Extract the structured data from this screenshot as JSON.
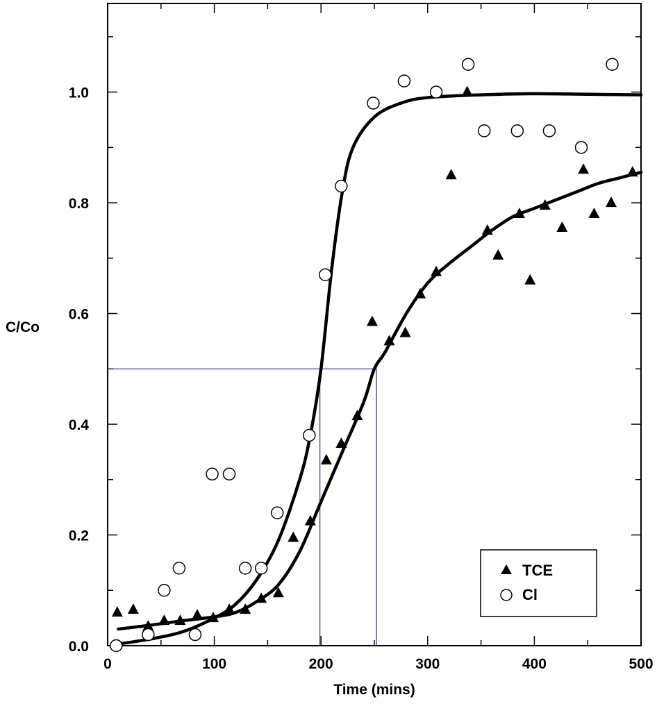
{
  "chart_data": {
    "type": "scatter",
    "xlabel": "Time (mins)",
    "ylabel": "C/Co",
    "xlim": [
      0,
      500
    ],
    "ylim": [
      0,
      1.16
    ],
    "x_ticks": [
      "0",
      "100",
      "200",
      "300",
      "400",
      "500"
    ],
    "y_ticks": [
      "0.0",
      "0.2",
      "0.4",
      "0.6",
      "0.8",
      "1.0"
    ],
    "grid": false,
    "legend_position": "bottom-right",
    "series": [
      {
        "name": "TCE",
        "marker": "filled-triangle",
        "points": [
          [
            9,
            0.06
          ],
          [
            24,
            0.065
          ],
          [
            38,
            0.035
          ],
          [
            53,
            0.045
          ],
          [
            68,
            0.045
          ],
          [
            84,
            0.055
          ],
          [
            99,
            0.05
          ],
          [
            114,
            0.065
          ],
          [
            129,
            0.065
          ],
          [
            144,
            0.085
          ],
          [
            160,
            0.095
          ],
          [
            174,
            0.195
          ],
          [
            190,
            0.225
          ],
          [
            205,
            0.335
          ],
          [
            219,
            0.365
          ],
          [
            234,
            0.415
          ],
          [
            248,
            0.585
          ],
          [
            264,
            0.55
          ],
          [
            279,
            0.565
          ],
          [
            293,
            0.635
          ],
          [
            308,
            0.675
          ],
          [
            322,
            0.85
          ],
          [
            337,
            1.0
          ],
          [
            356,
            0.75
          ],
          [
            366,
            0.705
          ],
          [
            386,
            0.78
          ],
          [
            396,
            0.66
          ],
          [
            410,
            0.795
          ],
          [
            426,
            0.755
          ],
          [
            446,
            0.86
          ],
          [
            456,
            0.78
          ],
          [
            472,
            0.8
          ],
          [
            492,
            0.855
          ]
        ]
      },
      {
        "name": "Cl",
        "marker": "open-circle",
        "points": [
          [
            8,
            0.0
          ],
          [
            38,
            0.02
          ],
          [
            53,
            0.1
          ],
          [
            67,
            0.14
          ],
          [
            82,
            0.02
          ],
          [
            98,
            0.31
          ],
          [
            114,
            0.31
          ],
          [
            129,
            0.14
          ],
          [
            144,
            0.14
          ],
          [
            159,
            0.24
          ],
          [
            189,
            0.38
          ],
          [
            204,
            0.67
          ],
          [
            219,
            0.83
          ],
          [
            249,
            0.98
          ],
          [
            278,
            1.02
          ],
          [
            308,
            1.0
          ],
          [
            338,
            1.05
          ],
          [
            353,
            0.93
          ],
          [
            384,
            0.93
          ],
          [
            414,
            0.93
          ],
          [
            444,
            0.9
          ],
          [
            473,
            1.05
          ]
        ]
      }
    ],
    "fit_curves": [
      {
        "series": "Cl",
        "points": [
          [
            10,
            0.003
          ],
          [
            40,
            0.012
          ],
          [
            70,
            0.025
          ],
          [
            100,
            0.05
          ],
          [
            120,
            0.075
          ],
          [
            140,
            0.12
          ],
          [
            160,
            0.19
          ],
          [
            180,
            0.3
          ],
          [
            190,
            0.38
          ],
          [
            200,
            0.5
          ],
          [
            210,
            0.68
          ],
          [
            220,
            0.82
          ],
          [
            230,
            0.9
          ],
          [
            250,
            0.955
          ],
          [
            275,
            0.98
          ],
          [
            300,
            0.99
          ],
          [
            350,
            0.995
          ],
          [
            400,
            0.997
          ],
          [
            450,
            0.996
          ],
          [
            500,
            0.995
          ]
        ]
      },
      {
        "series": "TCE",
        "points": [
          [
            10,
            0.03
          ],
          [
            40,
            0.037
          ],
          [
            70,
            0.045
          ],
          [
            100,
            0.052
          ],
          [
            120,
            0.06
          ],
          [
            140,
            0.08
          ],
          [
            160,
            0.11
          ],
          [
            180,
            0.17
          ],
          [
            200,
            0.26
          ],
          [
            220,
            0.35
          ],
          [
            240,
            0.44
          ],
          [
            250,
            0.5
          ],
          [
            260,
            0.53
          ],
          [
            280,
            0.6
          ],
          [
            300,
            0.655
          ],
          [
            320,
            0.69
          ],
          [
            340,
            0.72
          ],
          [
            360,
            0.75
          ],
          [
            380,
            0.775
          ],
          [
            400,
            0.79
          ],
          [
            420,
            0.805
          ],
          [
            440,
            0.82
          ],
          [
            460,
            0.835
          ],
          [
            480,
            0.845
          ],
          [
            500,
            0.855
          ]
        ]
      }
    ],
    "reference_lines": [
      {
        "type": "horizontal",
        "y": 0.5,
        "x_from": 0,
        "x_to": 252,
        "color": "#2b2b8c"
      },
      {
        "type": "vertical",
        "x": 199,
        "y_from": 0,
        "y_to": 0.5,
        "color": "#2b2b8c"
      },
      {
        "type": "vertical",
        "x": 252,
        "y_from": 0,
        "y_to": 0.5,
        "color": "#2b2b8c"
      }
    ]
  }
}
